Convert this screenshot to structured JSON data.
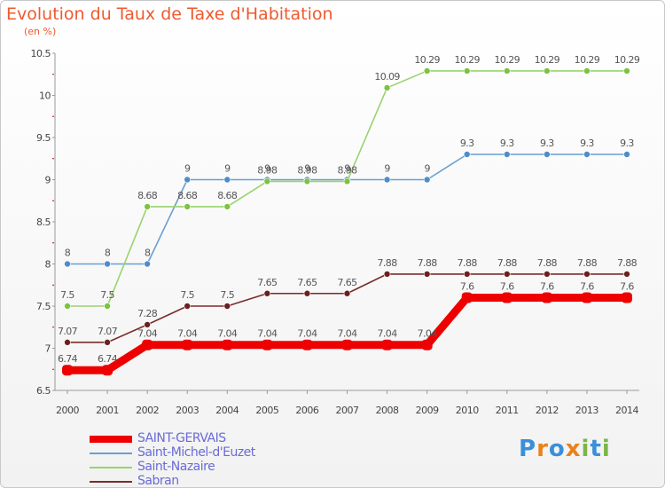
{
  "title": "Evolution du Taux de Taxe d'Habitation",
  "subtitle": "(en %)",
  "logo": {
    "text": "Proxiti",
    "letters": [
      "P",
      "r",
      "o",
      "x",
      "i",
      "t",
      "i"
    ],
    "colors": [
      "#3b8fd9",
      "#e8821e",
      "#3b8fd9",
      "#e8821e",
      "#7ab648",
      "#3b8fd9",
      "#7ab648"
    ]
  },
  "colors": {
    "axis": "#999999",
    "tick_text": "#444444",
    "value_text": "#555555",
    "title": "#ee5a2f",
    "legend_text": "#6b6bd6",
    "axis_tick_mark": "#cc0000"
  },
  "chart_data": {
    "type": "line",
    "title": "Evolution du Taux de Taxe d'Habitation",
    "ylabel": "(en %)",
    "xlabel": "",
    "ylim": [
      6.5,
      10.5
    ],
    "yticks": [
      "6.5",
      "7",
      "7.5",
      "8",
      "8.5",
      "9",
      "9.5",
      "10",
      "10.5"
    ],
    "x": [
      "2000",
      "2001",
      "2002",
      "2003",
      "2004",
      "2005",
      "2006",
      "2007",
      "2008",
      "2009",
      "2010",
      "2011",
      "2012",
      "2013",
      "2014"
    ],
    "grid": false,
    "legend_position": "bottom-left",
    "series": [
      {
        "name": "SAINT-GERVAIS",
        "color": "#ee0000",
        "point_color": "#ee0000",
        "thick": true,
        "values": [
          6.74,
          6.74,
          7.04,
          7.04,
          7.04,
          7.04,
          7.04,
          7.04,
          7.04,
          7.04,
          7.6,
          7.6,
          7.6,
          7.6,
          7.6
        ]
      },
      {
        "name": "Saint-Michel-d'Euzet",
        "color": "#6a9fd0",
        "point_color": "#4f8cc9",
        "thick": false,
        "values": [
          8,
          8,
          8,
          9,
          9,
          9,
          9,
          9,
          9,
          9,
          9.3,
          9.3,
          9.3,
          9.3,
          9.3
        ]
      },
      {
        "name": "Saint-Nazaire",
        "color": "#99d36e",
        "point_color": "#7cc342",
        "thick": false,
        "values": [
          7.5,
          7.5,
          8.68,
          8.68,
          8.68,
          8.98,
          8.98,
          8.98,
          10.09,
          10.29,
          10.29,
          10.29,
          10.29,
          10.29,
          10.29
        ]
      },
      {
        "name": "Sabran",
        "color": "#7a2c2c",
        "point_color": "#6b1f1f",
        "thick": false,
        "values": [
          7.07,
          7.07,
          7.28,
          7.5,
          7.5,
          7.65,
          7.65,
          7.65,
          7.88,
          7.88,
          7.88,
          7.88,
          7.88,
          7.88,
          7.88
        ]
      }
    ]
  }
}
